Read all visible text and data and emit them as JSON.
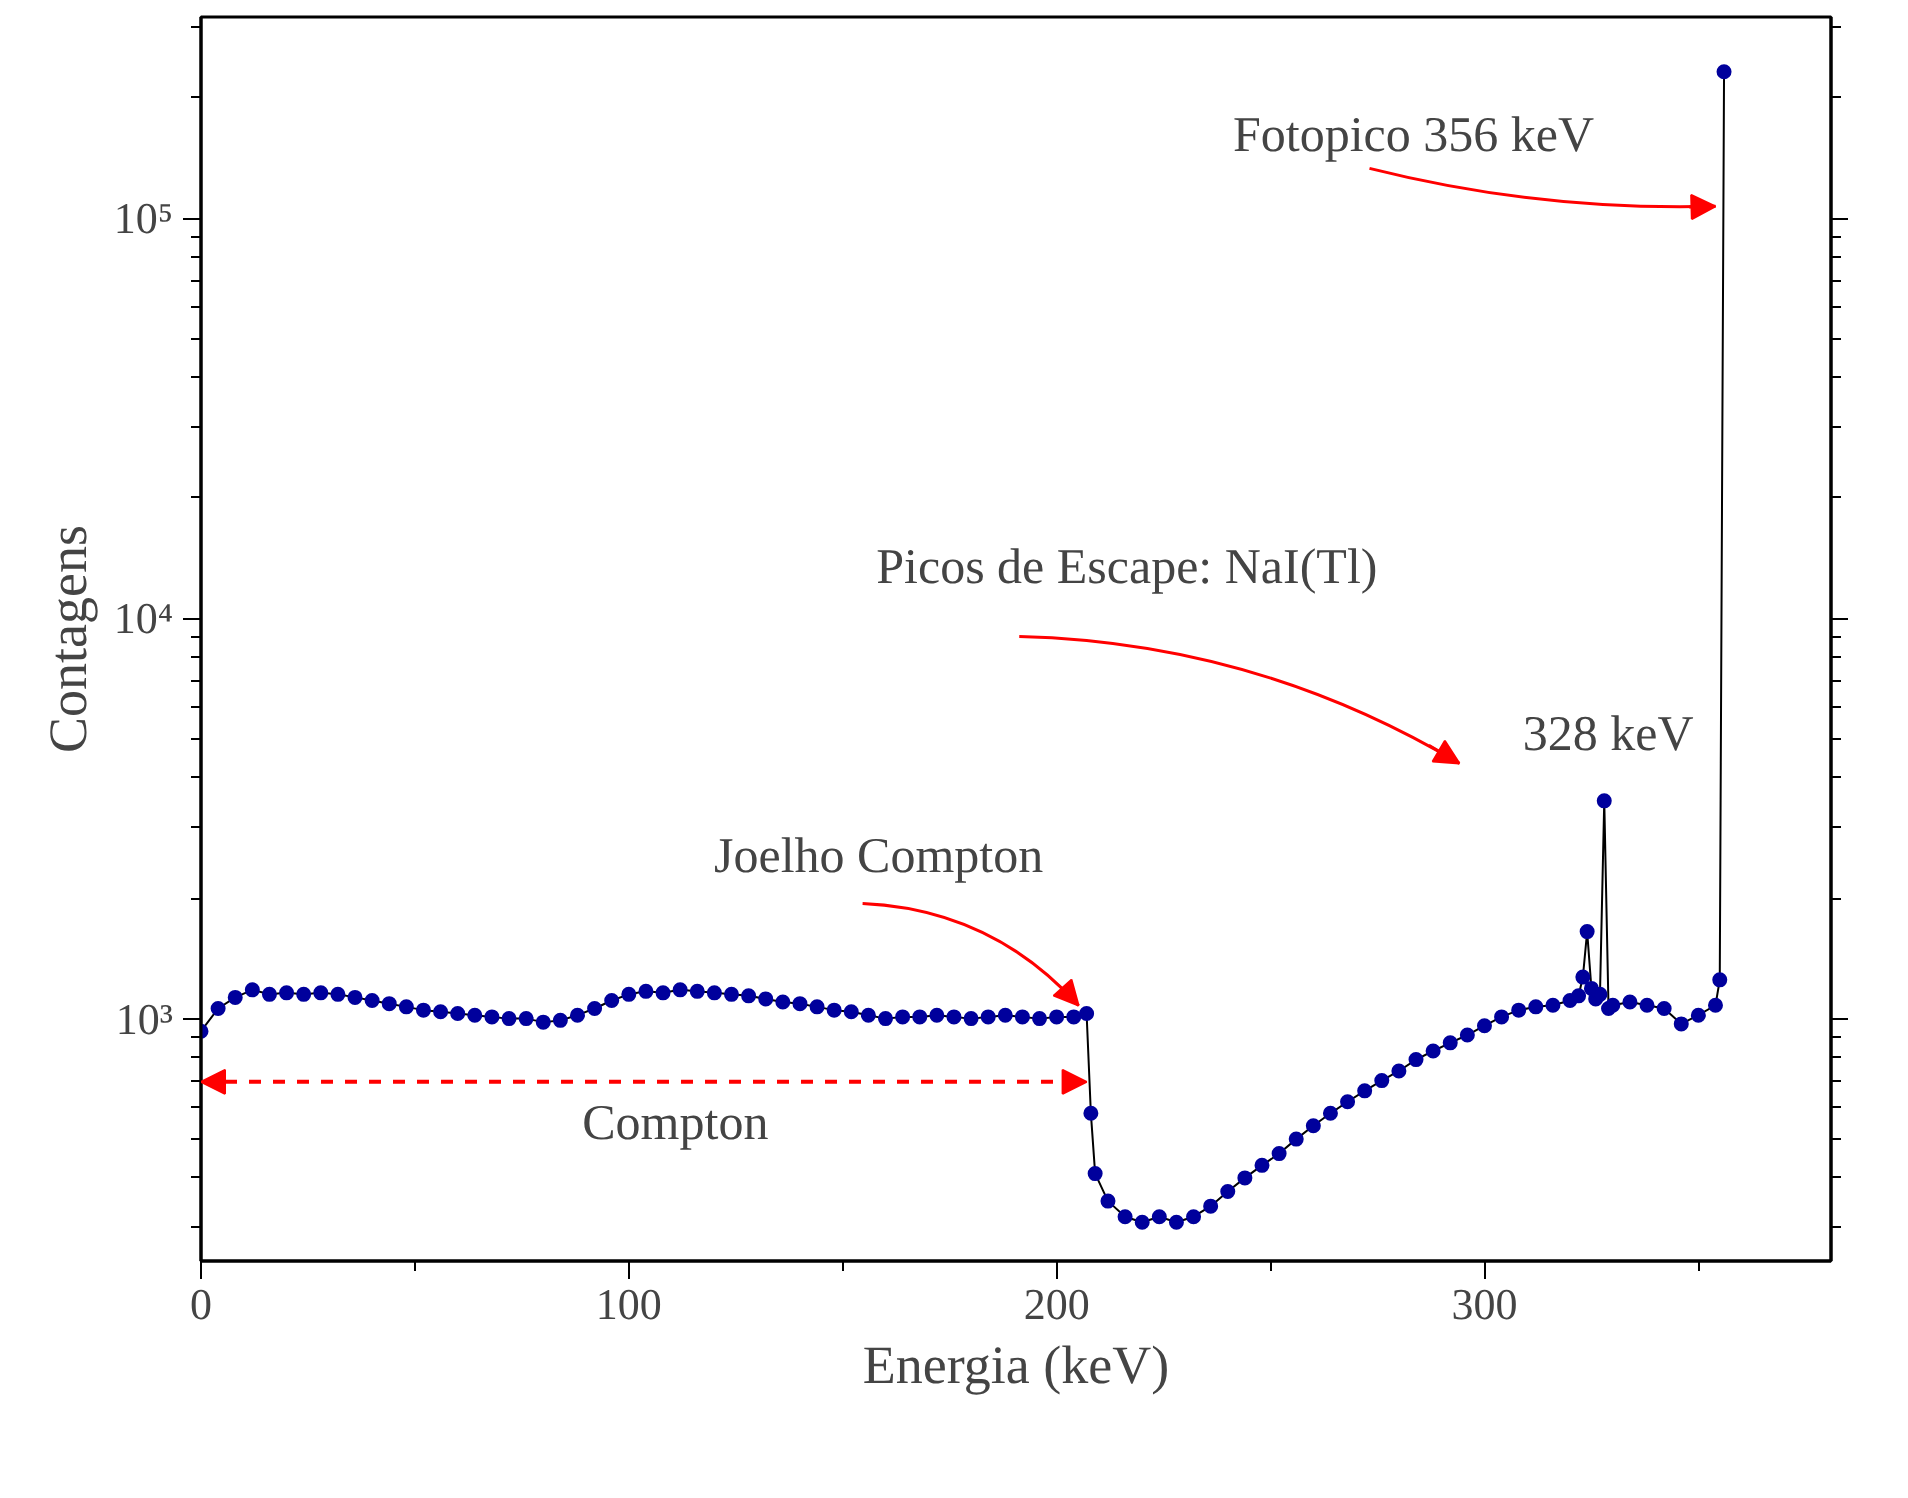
{
  "chart_data": {
    "type": "line",
    "xlabel": "Energia (keV)",
    "ylabel": "Contagens",
    "x": [
      0,
      4,
      8,
      12,
      16,
      20,
      24,
      28,
      32,
      36,
      40,
      44,
      48,
      52,
      56,
      60,
      64,
      68,
      72,
      76,
      80,
      84,
      88,
      92,
      96,
      100,
      104,
      108,
      112,
      116,
      120,
      124,
      128,
      132,
      136,
      140,
      144,
      148,
      152,
      156,
      160,
      164,
      168,
      172,
      176,
      180,
      184,
      188,
      192,
      196,
      200,
      204,
      207,
      208,
      209,
      212,
      216,
      220,
      224,
      228,
      232,
      236,
      240,
      244,
      248,
      252,
      256,
      260,
      264,
      268,
      272,
      276,
      280,
      284,
      288,
      292,
      296,
      300,
      304,
      308,
      312,
      316,
      320,
      322,
      323,
      324,
      325,
      326,
      327,
      328,
      329,
      330,
      334,
      338,
      342,
      346,
      350,
      354,
      355,
      356
    ],
    "series": [
      {
        "color": "#00009c",
        "values": [
          930,
          1060,
          1130,
          1180,
          1150,
          1160,
          1150,
          1160,
          1150,
          1130,
          1110,
          1090,
          1070,
          1050,
          1040,
          1030,
          1020,
          1010,
          1000,
          1000,
          980,
          990,
          1020,
          1060,
          1110,
          1150,
          1170,
          1160,
          1180,
          1170,
          1160,
          1150,
          1140,
          1120,
          1100,
          1090,
          1070,
          1050,
          1040,
          1020,
          1000,
          1010,
          1010,
          1020,
          1010,
          1000,
          1010,
          1020,
          1010,
          1000,
          1010,
          1010,
          1030,
          580,
          410,
          350,
          320,
          310,
          320,
          310,
          320,
          340,
          370,
          400,
          430,
          460,
          500,
          540,
          580,
          620,
          660,
          700,
          740,
          790,
          830,
          870,
          910,
          960,
          1010,
          1050,
          1070,
          1080,
          1110,
          1140,
          1270,
          1650,
          1190,
          1120,
          1150,
          3500,
          1060,
          1080,
          1100,
          1080,
          1060,
          970,
          1020,
          1080,
          1250,
          232000
        ]
      }
    ],
    "marker": "circle",
    "log": "y",
    "xlim": [
      0,
      381
    ],
    "ylim": [
      248,
      318000
    ],
    "xticks": [
      0,
      {
        "value": 50,
        "label": null
      },
      100,
      {
        "value": 150,
        "label": null
      },
      200,
      {
        "value": 250,
        "label": null
      },
      300,
      {
        "value": 350,
        "label": null
      }
    ],
    "yticks": [
      {
        "value": 300,
        "label": null
      },
      {
        "value": 400,
        "label": null
      },
      {
        "value": 500,
        "label": null
      },
      {
        "value": 600,
        "label": null
      },
      {
        "value": 700,
        "label": null
      },
      {
        "value": 800,
        "label": null
      },
      {
        "value": 900,
        "label": null
      },
      {
        "value": 1000,
        "label": "10³"
      },
      {
        "value": 2000,
        "label": null
      },
      {
        "value": 3000,
        "label": null
      },
      {
        "value": 4000,
        "label": null
      },
      {
        "value": 5000,
        "label": null
      },
      {
        "value": 6000,
        "label": null
      },
      {
        "value": 7000,
        "label": null
      },
      {
        "value": 8000,
        "label": null
      },
      {
        "value": 9000,
        "label": null
      },
      {
        "value": 10000,
        "label": "10⁴"
      },
      {
        "value": 20000,
        "label": null
      },
      {
        "value": 30000,
        "label": null
      },
      {
        "value": 40000,
        "label": null
      },
      {
        "value": 50000,
        "label": null
      },
      {
        "value": 60000,
        "label": null
      },
      {
        "value": 70000,
        "label": null
      },
      {
        "value": 80000,
        "label": null
      },
      {
        "value": 90000,
        "label": null
      },
      {
        "value": 100000,
        "label": "10⁵"
      },
      {
        "value": 200000,
        "label": null
      },
      {
        "value": 300000,
        "label": null
      }
    ],
    "annotations": [
      {
        "text": "Fotopico 356 keV",
        "x": 354,
        "y": 107000
      },
      "Picos de Escape: NaI(Tl)",
      {
        "text": "328 keV",
        "x": 328,
        "y": 3500
      },
      {
        "text": "Joelho Compton",
        "x": 207,
        "y": 1030
      },
      "Compton"
    ]
  }
}
